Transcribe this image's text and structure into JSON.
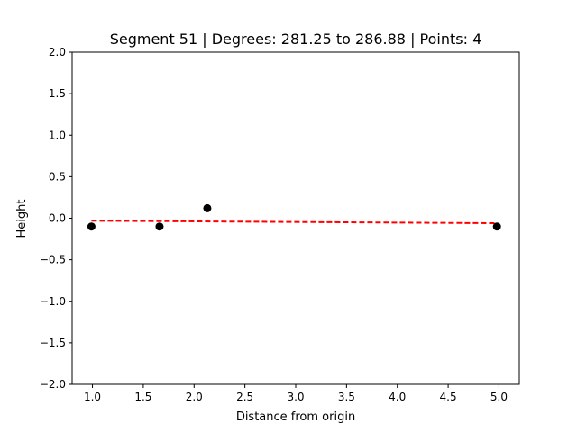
{
  "chart_data": {
    "type": "scatter",
    "title": "Segment 51 | Degrees: 281.25 to 286.88 | Points: 4",
    "xlabel": "Distance from origin",
    "ylabel": "Height",
    "xlim": [
      0.8,
      5.2
    ],
    "ylim": [
      -2.0,
      2.0
    ],
    "xticks": [
      1.0,
      1.5,
      2.0,
      2.5,
      3.0,
      3.5,
      4.0,
      4.5,
      5.0
    ],
    "xtick_labels": [
      "1.0",
      "1.5",
      "2.0",
      "2.5",
      "3.0",
      "3.5",
      "4.0",
      "4.5",
      "5.0"
    ],
    "yticks": [
      2.0,
      1.5,
      1.0,
      0.5,
      0.0,
      -0.5,
      -1.0,
      -1.5,
      -2.0
    ],
    "ytick_labels": [
      "2.0",
      "1.5",
      "1.0",
      "0.5",
      "0.0",
      "−0.5",
      "−1.0",
      "−1.5",
      "−2.0"
    ],
    "grid": false,
    "points": {
      "color": "#000000",
      "x": [
        0.99,
        1.66,
        2.13,
        4.98
      ],
      "y": [
        -0.1,
        -0.1,
        0.12,
        -0.1
      ]
    },
    "fit_line": {
      "color": "#ff0000",
      "style": "dashed",
      "x": [
        0.99,
        4.98
      ],
      "y": [
        -0.03,
        -0.06
      ]
    }
  }
}
